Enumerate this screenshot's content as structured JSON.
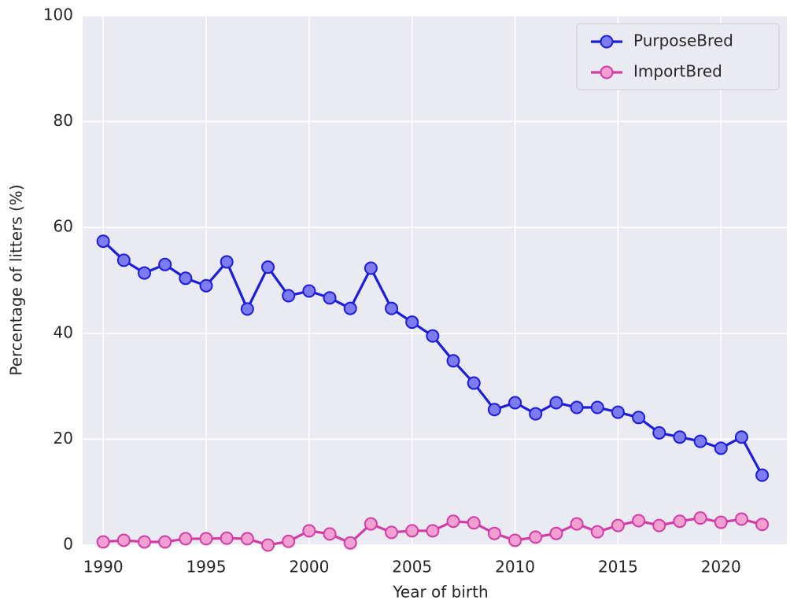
{
  "chart_data": {
    "type": "line",
    "x_label": "Year of birth",
    "y_label": "Percentage of litters (%)",
    "x": [
      1990,
      1991,
      1992,
      1993,
      1994,
      1995,
      1996,
      1997,
      1998,
      1999,
      2000,
      2001,
      2002,
      2003,
      2004,
      2005,
      2006,
      2007,
      2008,
      2009,
      2010,
      2011,
      2012,
      2013,
      2014,
      2015,
      2016,
      2017,
      2018,
      2019,
      2020,
      2021,
      2022
    ],
    "series": [
      {
        "name": "PurposeBred",
        "color": "#1c1cdc",
        "marker_fill": "#7c7cf0",
        "values": [
          57.4,
          53.8,
          51.4,
          53.0,
          50.4,
          49.0,
          53.5,
          44.6,
          52.5,
          47.1,
          48.0,
          46.7,
          44.7,
          52.3,
          44.7,
          42.1,
          39.5,
          34.8,
          30.6,
          25.6,
          26.9,
          24.8,
          26.9,
          26.0,
          26.0,
          25.1,
          24.1,
          21.2,
          20.4,
          19.6,
          18.3,
          20.4,
          13.2
        ]
      },
      {
        "name": "ImportBred",
        "color": "#d23ca6",
        "marker_fill": "#f29fd2",
        "values": [
          0.6,
          0.9,
          0.6,
          0.6,
          1.2,
          1.2,
          1.3,
          1.2,
          0,
          0.7,
          2.7,
          2.1,
          0.4,
          4.0,
          2.4,
          2.7,
          2.7,
          4.5,
          4.2,
          2.2,
          0.9,
          1.5,
          2.2,
          4.0,
          2.5,
          3.7,
          4.6,
          3.7,
          4.5,
          5.1,
          4.3,
          4.9,
          3.9
        ]
      }
    ],
    "xlim": [
      1989,
      2023.2
    ],
    "xticks": [
      1990,
      1995,
      2000,
      2005,
      2010,
      2015,
      2020
    ],
    "ylim": [
      0,
      100
    ],
    "yticks": [
      0,
      20,
      40,
      60,
      80,
      100
    ],
    "grid": true,
    "legend": "upper right"
  }
}
